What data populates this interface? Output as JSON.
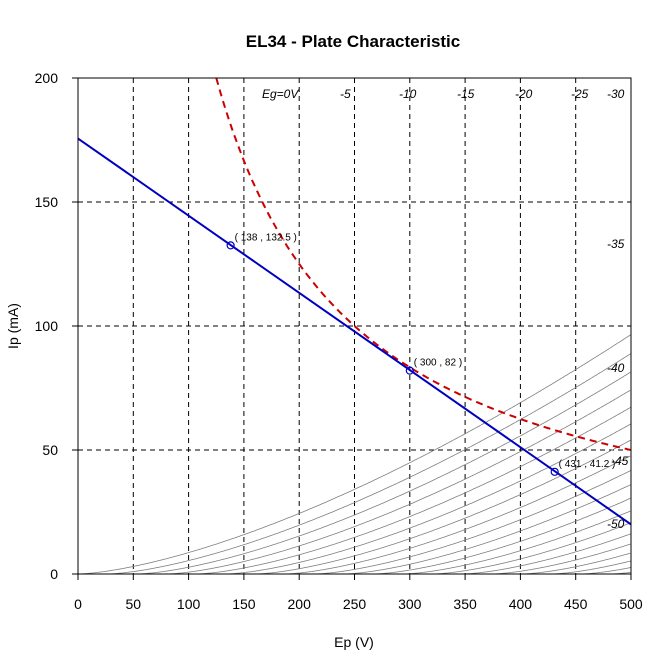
{
  "chart_data": {
    "type": "line",
    "title": "EL34 - Plate Characteristic",
    "xlabel": "Ep (V)",
    "ylabel": "Ip (mA)",
    "xlim": [
      0,
      500
    ],
    "ylim": [
      0,
      200
    ],
    "x_ticks": [
      "0",
      "50",
      "100",
      "150",
      "200",
      "250",
      "300",
      "350",
      "400",
      "450",
      "500"
    ],
    "y_ticks": [
      "0",
      "50",
      "100",
      "150",
      "200"
    ],
    "grid": true,
    "grid_style": "dashed",
    "plate_curves": [
      {
        "label": "Eg=0V",
        "grid_voltage": 0
      },
      {
        "label": "-5",
        "grid_voltage": -5
      },
      {
        "label": "-10",
        "grid_voltage": -10
      },
      {
        "label": "-15",
        "grid_voltage": -15
      },
      {
        "label": "-20",
        "grid_voltage": -20
      },
      {
        "label": "-25",
        "grid_voltage": -25
      },
      {
        "label": "-30",
        "grid_voltage": -30
      },
      {
        "label": "-35",
        "grid_voltage": -35
      },
      {
        "label": "-40",
        "grid_voltage": -40
      },
      {
        "label": "-45",
        "grid_voltage": -45
      },
      {
        "label": "-50",
        "grid_voltage": -50
      }
    ],
    "unlabeled_plate_curves": [
      -2.5,
      -7.5,
      -12.5,
      -17.5,
      -22.5,
      -27.5,
      -32.5,
      -37.5,
      -42.5,
      -47.5
    ],
    "load_line": {
      "x": [
        0,
        500
      ],
      "y": [
        175.6,
        20.0
      ],
      "color": "#0000c0"
    },
    "max_dissipation_curve": {
      "watts": 25,
      "x_range": [
        125,
        500
      ],
      "color": "#cc0000",
      "style": "dashed"
    },
    "operating_points": [
      {
        "x": 138,
        "y": 132.5,
        "label": "( 138 , 132.5 )"
      },
      {
        "x": 300,
        "y": 82,
        "label": "( 300 , 82 )"
      },
      {
        "x": 431,
        "y": 41.2,
        "label": "( 431 , 41.2 )"
      }
    ],
    "colors": {
      "plate_curve": "#7f7f7f",
      "grid": "#000000",
      "point": "#0000c0"
    }
  }
}
